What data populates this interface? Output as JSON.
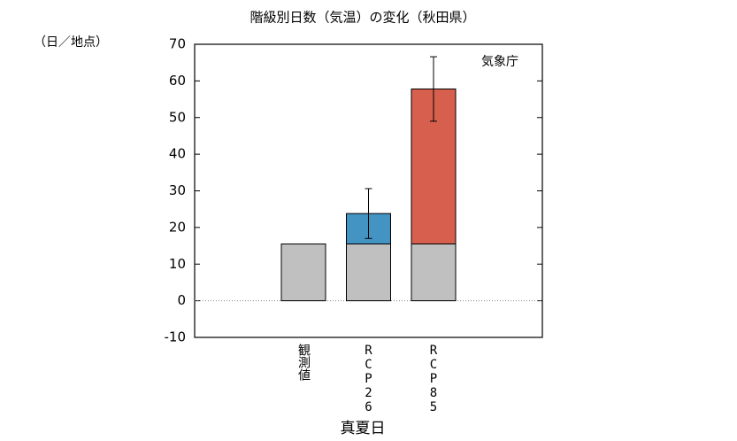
{
  "chart_data": {
    "type": "bar",
    "title": "階級別日数（気温）の変化（秋田県）",
    "y_label": "（日／地点）",
    "x_label": "真夏日",
    "annotation": "気象庁",
    "categories": [
      "観測値",
      "RCP26",
      "RCP85"
    ],
    "series": [
      {
        "color": "#c0c0c0",
        "values": [
          15.5,
          15.5,
          15.5
        ]
      },
      {
        "color": "#4393c3",
        "values": [
          null,
          8.3,
          null
        ],
        "errors": [
          null,
          6.8,
          null
        ]
      },
      {
        "color": "#d6604d",
        "values": [
          null,
          null,
          42.3
        ],
        "errors": [
          null,
          null,
          8.8
        ]
      }
    ],
    "ylim": [
      -10,
      70
    ],
    "yticks": [
      -10,
      0,
      10,
      20,
      30,
      40,
      50,
      60,
      70
    ],
    "zero_line": true
  }
}
